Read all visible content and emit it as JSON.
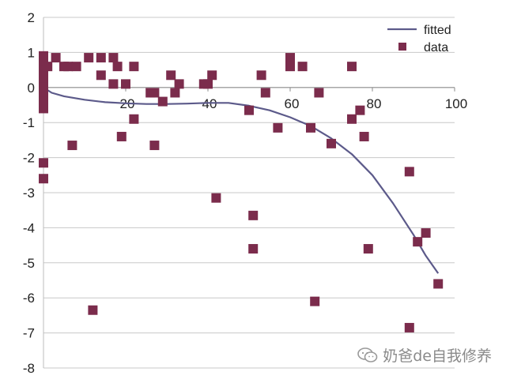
{
  "chart_data": {
    "type": "scatter",
    "title": "",
    "xlabel": "",
    "ylabel": "",
    "xlim": [
      0,
      100
    ],
    "ylim": [
      -8,
      2
    ],
    "xticks": [
      0,
      20,
      40,
      60,
      80,
      100
    ],
    "yticks": [
      2,
      1,
      0,
      -1,
      -2,
      -3,
      -4,
      -5,
      -6,
      -7,
      -8
    ],
    "grid": "horizontal",
    "legend_position": "top-right",
    "colors": {
      "fitted": "#5c5a8a",
      "data": "#7b2c4c",
      "grid": "#c8c8c8"
    },
    "series": [
      {
        "name": "fitted",
        "type": "line",
        "points": [
          [
            0,
            0
          ],
          [
            2,
            -0.15
          ],
          [
            5,
            -0.25
          ],
          [
            10,
            -0.35
          ],
          [
            15,
            -0.42
          ],
          [
            20,
            -0.45
          ],
          [
            25,
            -0.47
          ],
          [
            30,
            -0.47
          ],
          [
            35,
            -0.46
          ],
          [
            40,
            -0.44
          ],
          [
            45,
            -0.44
          ],
          [
            50,
            -0.52
          ],
          [
            55,
            -0.65
          ],
          [
            60,
            -0.85
          ],
          [
            65,
            -1.1
          ],
          [
            70,
            -1.45
          ],
          [
            75,
            -1.9
          ],
          [
            80,
            -2.5
          ],
          [
            85,
            -3.3
          ],
          [
            90,
            -4.2
          ],
          [
            93,
            -4.8
          ],
          [
            96,
            -5.3
          ]
        ]
      },
      {
        "name": "data",
        "type": "scatter",
        "points": [
          [
            0,
            0.9
          ],
          [
            0,
            0.8
          ],
          [
            0,
            0.7
          ],
          [
            0,
            0.6
          ],
          [
            0,
            0.5
          ],
          [
            0,
            0.4
          ],
          [
            0,
            0.3
          ],
          [
            0,
            0.2
          ],
          [
            0,
            0.1
          ],
          [
            0,
            0.0
          ],
          [
            0,
            -0.1
          ],
          [
            0,
            -0.2
          ],
          [
            0,
            -0.4
          ],
          [
            0,
            -0.6
          ],
          [
            0,
            -2.15
          ],
          [
            0,
            -2.6
          ],
          [
            1,
            0.6
          ],
          [
            3,
            0.85
          ],
          [
            5,
            0.6
          ],
          [
            6,
            0.6
          ],
          [
            7,
            -1.65
          ],
          [
            8,
            0.6
          ],
          [
            11,
            0.85
          ],
          [
            12,
            -6.35
          ],
          [
            14,
            0.85
          ],
          [
            14,
            0.35
          ],
          [
            17,
            0.85
          ],
          [
            17,
            0.1
          ],
          [
            18,
            0.6
          ],
          [
            19,
            -1.4
          ],
          [
            20,
            0.1
          ],
          [
            22,
            0.6
          ],
          [
            22,
            -0.9
          ],
          [
            26,
            -0.15
          ],
          [
            27,
            -0.15
          ],
          [
            27,
            -1.65
          ],
          [
            29,
            -0.4
          ],
          [
            31,
            0.35
          ],
          [
            32,
            -0.15
          ],
          [
            33,
            0.1
          ],
          [
            39,
            0.1
          ],
          [
            40,
            0.1
          ],
          [
            41,
            0.35
          ],
          [
            42,
            -3.15
          ],
          [
            50,
            -0.65
          ],
          [
            51,
            -3.65
          ],
          [
            51,
            -4.6
          ],
          [
            53,
            0.35
          ],
          [
            54,
            -0.15
          ],
          [
            57,
            -1.15
          ],
          [
            60,
            0.85
          ],
          [
            60,
            0.6
          ],
          [
            63,
            0.6
          ],
          [
            65,
            -1.15
          ],
          [
            66,
            -6.1
          ],
          [
            67,
            -0.15
          ],
          [
            70,
            -1.6
          ],
          [
            75,
            0.6
          ],
          [
            75,
            -0.9
          ],
          [
            77,
            -0.65
          ],
          [
            78,
            -1.4
          ],
          [
            79,
            -4.6
          ],
          [
            89,
            -2.4
          ],
          [
            89,
            -6.85
          ],
          [
            91,
            -4.4
          ],
          [
            93,
            -4.15
          ],
          [
            96,
            -5.6
          ]
        ]
      }
    ]
  },
  "watermark": {
    "text": "奶爸de自我修养",
    "icon": "wechat-icon"
  }
}
